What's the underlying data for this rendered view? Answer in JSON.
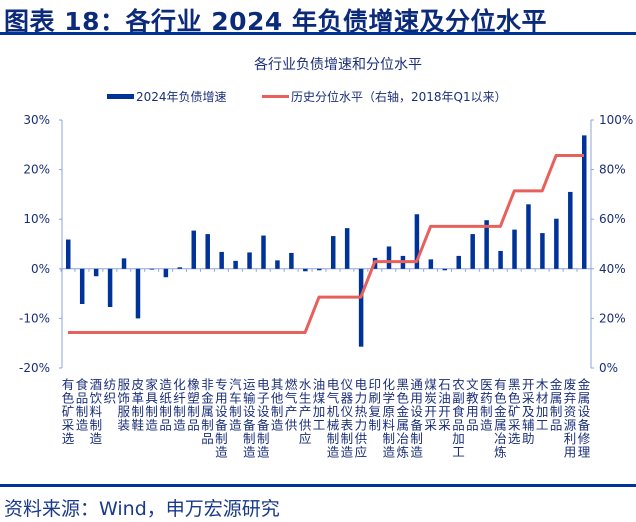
{
  "header": {
    "title": "图表 18：各行业 2024 年负债增速及分位水平"
  },
  "footer": {
    "source": "资料来源：Wind，申万宏源研究"
  },
  "colors": {
    "bar": "#003399",
    "line": "#e8605c",
    "axis": "#8ea6d8",
    "text": "#1a2f7a"
  },
  "chart_data": {
    "type": "bar+line",
    "title": "各行业负债增速和分位水平",
    "legend_position": "top",
    "grid": false,
    "categories": [
      "有色矿采选",
      "食品制造",
      "酒饮料制造",
      "纺织",
      "服饰服装",
      "皮革制鞋",
      "家具制造",
      "造纸制品",
      "化纤制造",
      "橡塑制品",
      "非金属制品",
      "专用设备制造",
      "汽车制造",
      "运输设备制造",
      "电子设备制造",
      "其他制造",
      "燃气产供",
      "水生产供应",
      "油煤加工",
      "电气机械制造",
      "仪器仪表制造",
      "电力热力供应",
      "印刷复制",
      "化学原料制造",
      "黑色金属冶炼",
      "通用设备制造",
      "煤炭开采",
      "石油开采",
      "农副食品加工",
      "文教用品",
      "医药制造",
      "有色金属冶炼",
      "黑色矿采选",
      "开采及辅助",
      "木材加工",
      "金属制品",
      "废弃资源利用",
      "金属设备修理"
    ],
    "left_axis": {
      "ylim": [
        -20,
        30
      ],
      "ticks": [
        "-20%",
        "-10%",
        "0%",
        "10%",
        "20%",
        "30%"
      ]
    },
    "right_axis": {
      "ylim": [
        0,
        100
      ],
      "ticks": [
        "0%",
        "20%",
        "40%",
        "60%",
        "80%",
        "100%"
      ]
    },
    "series": [
      {
        "name": "2024年负债增速",
        "type": "bar",
        "axis": "left",
        "values": [
          5.9,
          -7.1,
          -1.5,
          -7.7,
          2.1,
          -10.0,
          -0.1,
          -1.7,
          0.3,
          7.7,
          7.0,
          3.4,
          1.6,
          3.3,
          6.7,
          1.7,
          3.2,
          -0.5,
          -0.3,
          6.6,
          8.2,
          -15.7,
          2.2,
          4.5,
          2.6,
          11.0,
          1.9,
          -0.3,
          2.6,
          7.0,
          9.8,
          3.6,
          7.9,
          13.0,
          7.2,
          10.1,
          15.5,
          26.9
        ]
      },
      {
        "name": "历史分位水平（右轴，2018年Q1以来）",
        "type": "line",
        "axis": "right",
        "values": [
          14.3,
          14.3,
          14.3,
          14.3,
          14.3,
          14.3,
          14.3,
          14.3,
          14.3,
          14.3,
          14.3,
          14.3,
          14.3,
          14.3,
          14.3,
          14.3,
          14.3,
          14.3,
          28.6,
          28.6,
          28.6,
          28.6,
          42.9,
          42.9,
          42.9,
          42.9,
          57.1,
          57.1,
          57.1,
          57.1,
          57.1,
          57.1,
          71.4,
          71.4,
          71.4,
          85.7,
          85.7,
          85.7
        ]
      }
    ]
  }
}
